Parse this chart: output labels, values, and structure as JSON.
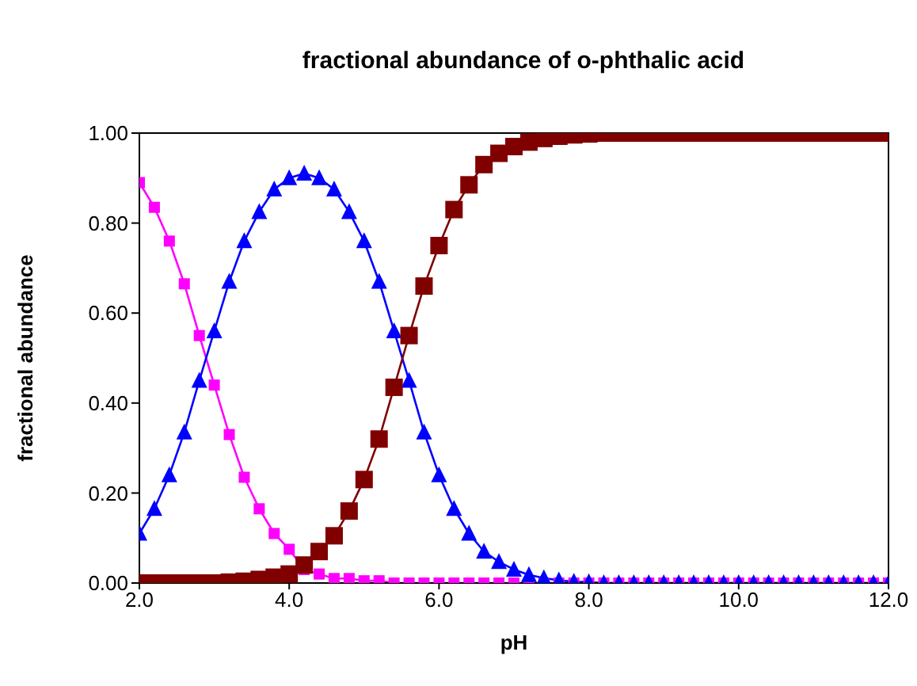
{
  "chart_data": {
    "type": "line",
    "title": "fractional abundance of o-phthalic acid",
    "xlabel": "pH",
    "ylabel": "fractional abundance",
    "x": [
      2.0,
      2.2,
      2.4,
      2.6,
      2.8,
      3.0,
      3.2,
      3.4,
      3.6,
      3.8,
      4.0,
      4.2,
      4.4,
      4.6,
      4.8,
      5.0,
      5.2,
      5.4,
      5.6,
      5.8,
      6.0,
      6.2,
      6.4,
      6.6,
      6.8,
      7.0,
      7.2,
      7.4,
      7.6,
      7.8,
      8.0,
      8.2,
      8.4,
      8.6,
      8.8,
      9.0,
      9.2,
      9.4,
      9.6,
      9.8,
      10.0,
      10.2,
      10.4,
      10.6,
      10.8,
      11.0,
      11.2,
      11.4,
      11.6,
      11.8,
      12.0
    ],
    "series": [
      {
        "color": "#ff00ff",
        "marker": "square",
        "values": [
          0.89,
          0.835,
          0.76,
          0.665,
          0.55,
          0.44,
          0.33,
          0.235,
          0.165,
          0.11,
          0.075,
          0.03,
          0.02,
          0.01,
          0.01,
          0.005,
          0.005,
          0,
          0,
          0,
          0,
          0,
          0,
          0,
          0,
          0,
          0,
          0,
          0,
          0,
          0,
          0,
          0,
          0,
          0,
          0,
          0,
          0,
          0,
          0,
          0,
          0,
          0,
          0,
          0,
          0,
          0,
          0,
          0,
          0,
          0
        ]
      },
      {
        "color": "#0000ff",
        "marker": "triangle",
        "values": [
          0.11,
          0.165,
          0.24,
          0.335,
          0.45,
          0.56,
          0.67,
          0.76,
          0.825,
          0.875,
          0.9,
          0.91,
          0.9,
          0.875,
          0.825,
          0.76,
          0.67,
          0.56,
          0.45,
          0.335,
          0.24,
          0.165,
          0.11,
          0.07,
          0.047,
          0.03,
          0.018,
          0.011,
          0.006,
          0.003,
          0.002,
          0,
          0,
          0,
          0,
          0,
          0,
          0,
          0,
          0,
          0,
          0,
          0,
          0,
          0,
          0,
          0,
          0,
          0,
          0,
          0
        ]
      },
      {
        "color": "#800000",
        "marker": "square",
        "values": [
          0,
          0,
          0,
          0,
          0,
          0,
          0.002,
          0.004,
          0.008,
          0.013,
          0.02,
          0.04,
          0.07,
          0.105,
          0.16,
          0.23,
          0.32,
          0.435,
          0.55,
          0.66,
          0.75,
          0.83,
          0.885,
          0.93,
          0.955,
          0.97,
          0.98,
          0.988,
          0.993,
          0.996,
          0.998,
          1,
          1,
          1,
          1,
          1,
          1,
          1,
          1,
          1,
          1,
          1,
          1,
          1,
          1,
          1,
          1,
          1,
          1,
          1,
          1
        ]
      }
    ],
    "xlim": [
      2,
      12
    ],
    "xticks": [
      {
        "value": 2,
        "label": "2.0"
      },
      {
        "value": 4,
        "label": "4.0"
      },
      {
        "value": 6,
        "label": "6.0"
      },
      {
        "value": 8,
        "label": "8.0"
      },
      {
        "value": 10,
        "label": "10.0"
      },
      {
        "value": 12,
        "label": "12.0"
      }
    ],
    "ylim": [
      0,
      1
    ],
    "yticks": [
      {
        "value": 0,
        "label": "0.00"
      },
      {
        "value": 0.2,
        "label": "0.20"
      },
      {
        "value": 0.4,
        "label": "0.40"
      },
      {
        "value": 0.6,
        "label": "0.60"
      },
      {
        "value": 0.8,
        "label": "0.80"
      },
      {
        "value": 1,
        "label": "1.00"
      }
    ],
    "grid": false,
    "legend": false,
    "line_style": "solid"
  }
}
